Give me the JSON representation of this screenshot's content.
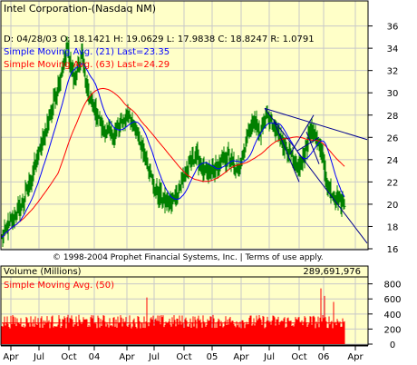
{
  "colors": {
    "background": "#ffffc8",
    "grid": "#c8c8c8",
    "price_bars": "#008000",
    "ma_fast": "#0000ff",
    "ma_slow": "#ff0000",
    "trendlines": "#000090",
    "volume_bars": "#ff0000",
    "text": "#000000"
  },
  "chart_data": [
    {
      "type": "bar",
      "subtype": "ohlc",
      "title": "Intel Corporation-(Nasdaq NM)",
      "info_line": "D: 04/28/03  O: 18.1421  H: 19.0629  L: 17.9838  C: 18.8247  R: 1.0791",
      "legend_entries": [
        "Simple Moving Avg. (21) Last=23.35",
        "Simple Moving Avg. (63) Last=24.29"
      ],
      "copyright": "© 1998-2004 Prophet Financial Systems, Inc. | Terms of use apply.",
      "y_axis_side": "right",
      "ylim": [
        16,
        36.7
      ],
      "y_ticks": [
        "16",
        "18",
        "20",
        "22",
        "24",
        "26",
        "28",
        "30",
        "32",
        "34",
        "36"
      ],
      "grid": true,
      "approx_close_path": [
        {
          "i": 0,
          "close": 17.0
        },
        {
          "i": 10,
          "close": 18.4
        },
        {
          "i": 22,
          "close": 20.0
        },
        {
          "i": 34,
          "close": 22.8
        },
        {
          "i": 46,
          "close": 26.0
        },
        {
          "i": 56,
          "close": 28.8
        },
        {
          "i": 66,
          "close": 32.0
        },
        {
          "i": 72,
          "close": 34.0
        },
        {
          "i": 80,
          "close": 31.0
        },
        {
          "i": 88,
          "close": 33.4
        },
        {
          "i": 94,
          "close": 30.0
        },
        {
          "i": 102,
          "close": 28.5
        },
        {
          "i": 110,
          "close": 27.0
        },
        {
          "i": 120,
          "close": 26.2
        },
        {
          "i": 130,
          "close": 27.0
        },
        {
          "i": 140,
          "close": 28.2
        },
        {
          "i": 150,
          "close": 26.0
        },
        {
          "i": 160,
          "close": 24.0
        },
        {
          "i": 168,
          "close": 21.5
        },
        {
          "i": 176,
          "close": 20.5
        },
        {
          "i": 186,
          "close": 20.0
        },
        {
          "i": 196,
          "close": 21.5
        },
        {
          "i": 206,
          "close": 23.6
        },
        {
          "i": 214,
          "close": 24.4
        },
        {
          "i": 222,
          "close": 23.0
        },
        {
          "i": 230,
          "close": 22.8
        },
        {
          "i": 240,
          "close": 23.6
        },
        {
          "i": 250,
          "close": 24.5
        },
        {
          "i": 258,
          "close": 22.8
        },
        {
          "i": 264,
          "close": 24.0
        },
        {
          "i": 272,
          "close": 26.5
        },
        {
          "i": 278,
          "close": 27.5
        },
        {
          "i": 284,
          "close": 26.3
        },
        {
          "i": 290,
          "close": 28.0
        },
        {
          "i": 298,
          "close": 27.2
        },
        {
          "i": 306,
          "close": 26.0
        },
        {
          "i": 314,
          "close": 25.0
        },
        {
          "i": 322,
          "close": 23.8
        },
        {
          "i": 328,
          "close": 23.2
        },
        {
          "i": 334,
          "close": 24.5
        },
        {
          "i": 340,
          "close": 26.8
        },
        {
          "i": 346,
          "close": 26.0
        },
        {
          "i": 352,
          "close": 25.2
        },
        {
          "i": 356,
          "close": 22.8
        },
        {
          "i": 360,
          "close": 21.5
        },
        {
          "i": 366,
          "close": 20.8
        },
        {
          "i": 372,
          "close": 20.5
        },
        {
          "i": 378,
          "close": 19.8
        }
      ],
      "trendlines": [
        {
          "from": {
            "i": 290,
            "value": 28.6
          },
          "to": {
            "i": 403,
            "value": 25.8
          }
        },
        {
          "from": {
            "i": 290,
            "value": 28.6
          },
          "to": {
            "i": 403,
            "value": 16.5
          }
        },
        {
          "from": {
            "i": 300,
            "value": 27.5
          },
          "to": {
            "i": 328,
            "value": 22.0
          }
        },
        {
          "from": {
            "i": 318,
            "value": 24.5
          },
          "to": {
            "i": 344,
            "value": 28.0
          }
        },
        {
          "from": {
            "i": 326,
            "value": 24.8
          },
          "to": {
            "i": 350,
            "value": 26.0
          }
        },
        {
          "from": {
            "i": 336,
            "value": 26.5
          },
          "to": {
            "i": 350,
            "value": 23.6
          }
        }
      ]
    },
    {
      "type": "bar",
      "title": "Volume (Millions)",
      "last_value": "289,691,976",
      "legend_entries": [
        "Simple Moving Avg. (50)"
      ],
      "y_axis_side": "right",
      "ylim": [
        0,
        880
      ],
      "y_ticks": [
        "0",
        "200",
        "400",
        "600",
        "800"
      ],
      "grid": true,
      "volume_level": 300,
      "ma_level": 280,
      "volume_spikes": [
        {
          "i": 160,
          "value": 620
        },
        {
          "i": 352,
          "value": 740
        },
        {
          "i": 356,
          "value": 640
        },
        {
          "i": 366,
          "value": 560
        }
      ]
    }
  ],
  "x_axis": {
    "labels": [
      {
        "text": "Apr",
        "i": 10
      },
      {
        "text": "Jul",
        "i": 41
      },
      {
        "text": "Oct",
        "i": 74
      },
      {
        "text": "04",
        "i": 102
      },
      {
        "text": "Apr",
        "i": 138
      },
      {
        "text": "Jul",
        "i": 168
      },
      {
        "text": "Oct",
        "i": 201
      },
      {
        "text": "05",
        "i": 232
      },
      {
        "text": "Apr",
        "i": 264
      },
      {
        "text": "Jul",
        "i": 295
      },
      {
        "text": "Oct",
        "i": 328
      },
      {
        "text": "06",
        "i": 355
      },
      {
        "text": "Apr",
        "i": 390
      }
    ]
  }
}
